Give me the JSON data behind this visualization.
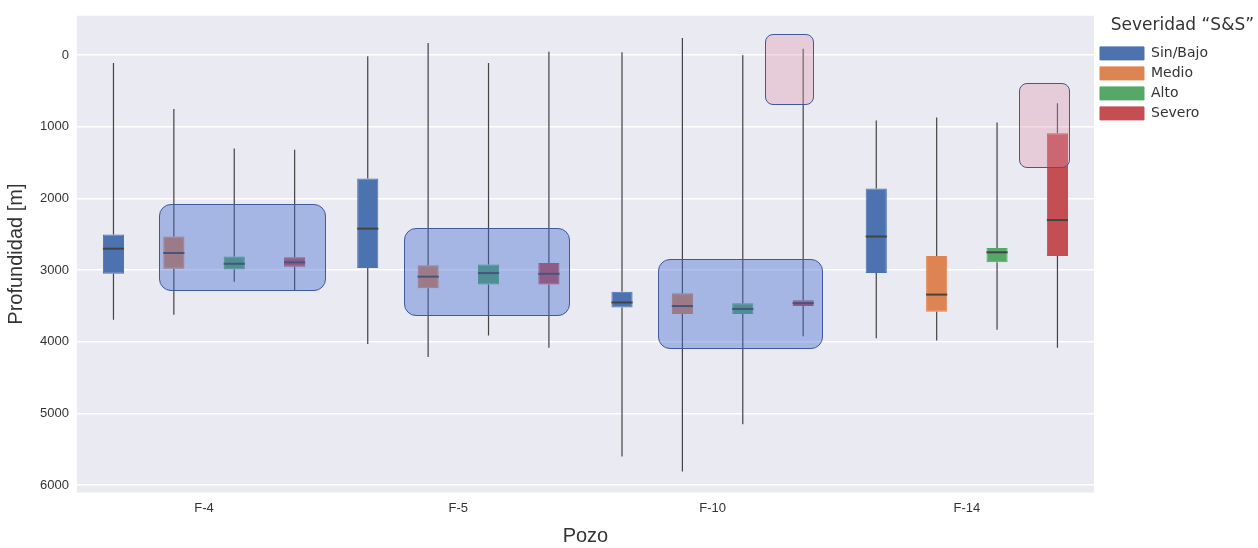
{
  "chart_data": {
    "type": "box",
    "xlabel": "Pozo",
    "ylabel": "Profundidad [m]",
    "legend_title": "Severidad “S&S”",
    "legend": "right",
    "grid": "y",
    "categories": [
      "F-4",
      "F-5",
      "F-10",
      "F-14"
    ],
    "ylim": [
      6100,
      -550
    ],
    "yticks": [
      0,
      1000,
      2000,
      3000,
      4000,
      5000,
      6000
    ],
    "series": [
      {
        "name": "Sin/Bajo",
        "color": "#4c72b0",
        "boxes": [
          {
            "low": 107,
            "q1": 2500,
            "median": 2700,
            "q3": 3050,
            "high": 3690
          },
          {
            "low": 13,
            "q1": 1720,
            "median": 2420,
            "q3": 2970,
            "high": 4030
          },
          {
            "low": -40,
            "q1": 3300,
            "median": 3450,
            "q3": 3520,
            "high": 5600
          },
          {
            "low": 910,
            "q1": 1860,
            "median": 2530,
            "q3": 3040,
            "high": 3950
          }
        ]
      },
      {
        "name": "Medio",
        "color": "#dd8452",
        "boxes": [
          {
            "low": 750,
            "q1": 2530,
            "median": 2760,
            "q3": 2980,
            "high": 3620
          },
          {
            "low": -170,
            "q1": 2930,
            "median": 3090,
            "q3": 3250,
            "high": 4210
          },
          {
            "low": -240,
            "q1": 3320,
            "median": 3500,
            "q3": 3610,
            "high": 5810
          },
          {
            "low": 870,
            "q1": 2800,
            "median": 3340,
            "q3": 3580,
            "high": 3980
          }
        ]
      },
      {
        "name": "Alto",
        "color": "#55a868",
        "boxes": [
          {
            "low": 1300,
            "q1": 2810,
            "median": 2910,
            "q3": 2990,
            "high": 3160
          },
          {
            "low": 110,
            "q1": 2920,
            "median": 3040,
            "q3": 3200,
            "high": 3910
          },
          {
            "low": 0,
            "q1": 3460,
            "median": 3540,
            "q3": 3610,
            "high": 5150
          },
          {
            "low": 940,
            "q1": 2690,
            "median": 2750,
            "q3": 2890,
            "high": 3830
          }
        ]
      },
      {
        "name": "Severo",
        "color": "#c44e52",
        "boxes": [
          {
            "low": 1320,
            "q1": 2820,
            "median": 2890,
            "q3": 2950,
            "high": 3290
          },
          {
            "low": -50,
            "q1": 2900,
            "median": 3050,
            "q3": 3200,
            "high": 4080
          },
          {
            "low": -90,
            "q1": 3420,
            "median": 3460,
            "q3": 3500,
            "high": 3920
          },
          {
            "low": 670,
            "q1": 1090,
            "median": 2300,
            "q3": 2800,
            "high": 4080
          }
        ]
      }
    ]
  }
}
